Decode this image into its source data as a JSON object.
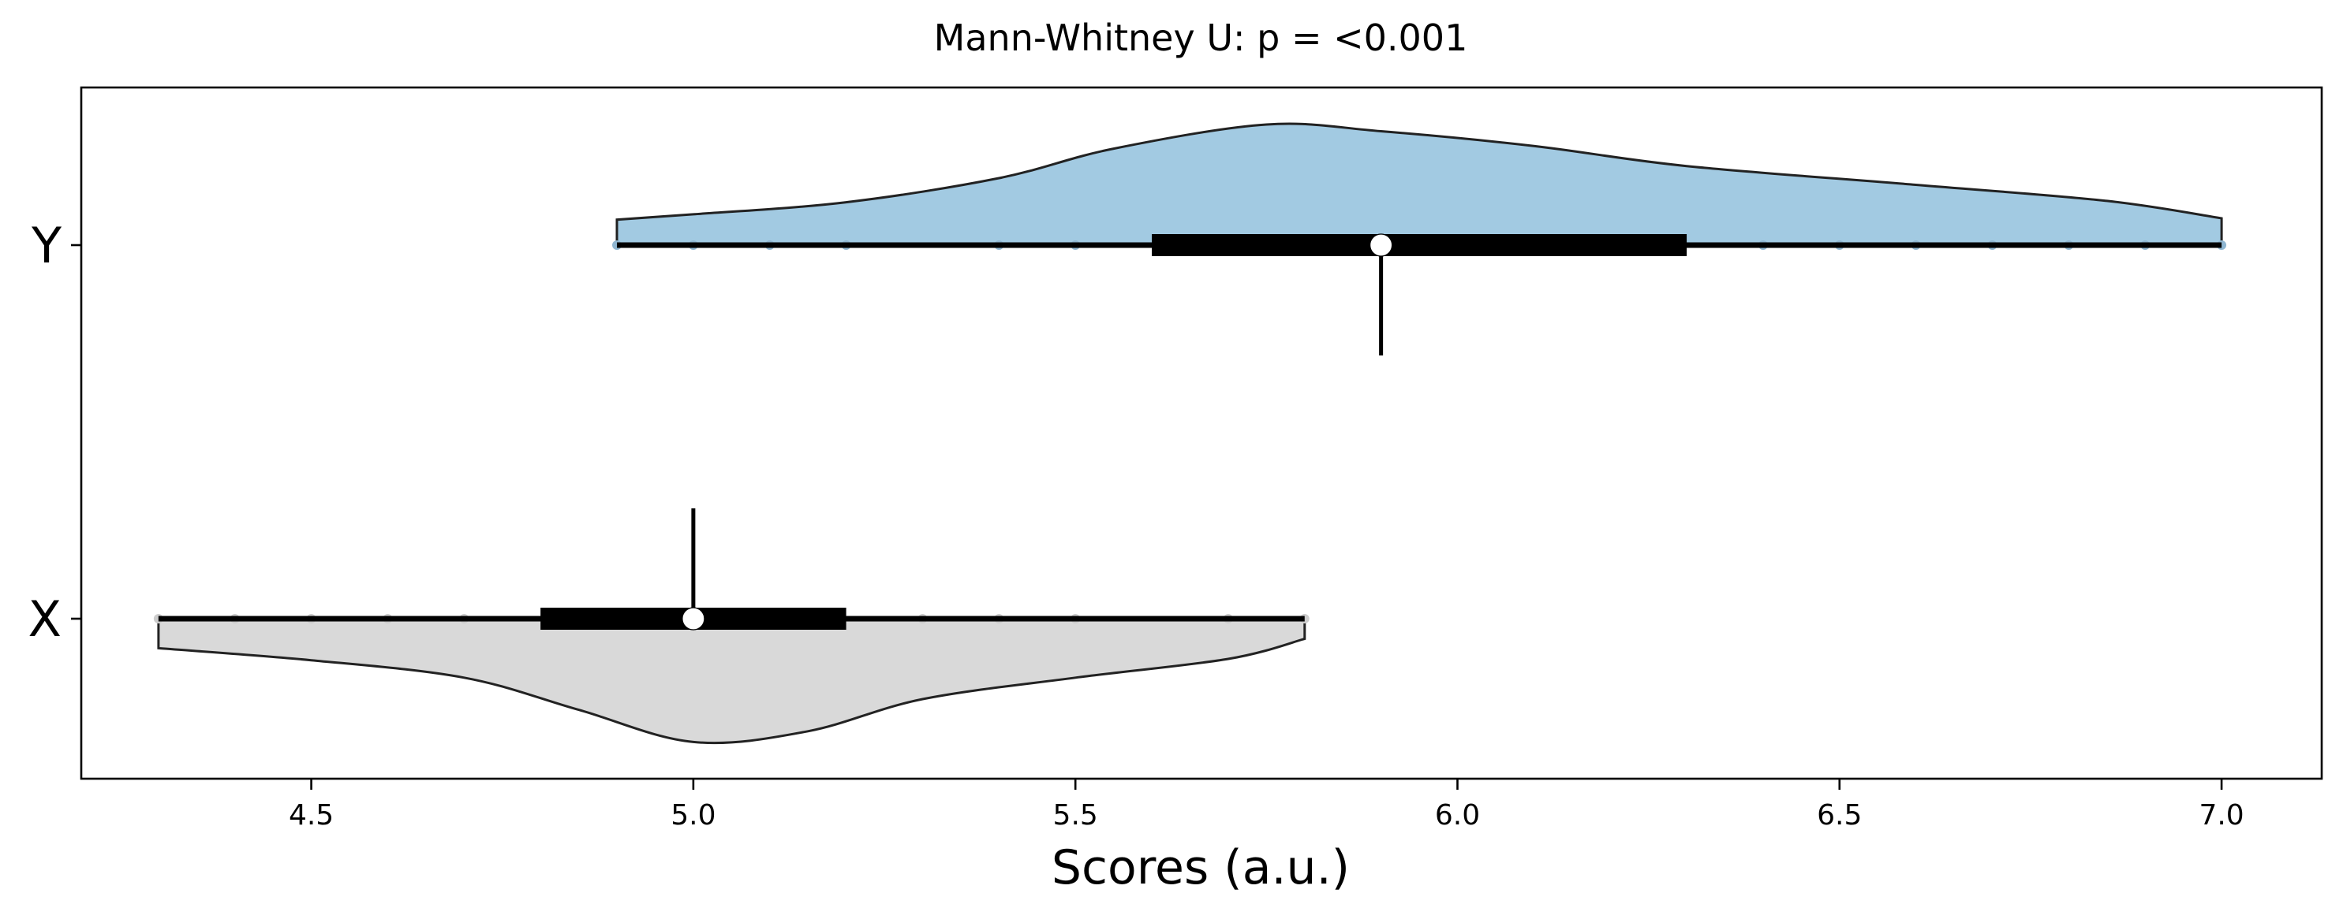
{
  "chart_data": {
    "type": "raincloud",
    "title": "Mann-Whitney U: p = <0.001",
    "xlabel": "Scores (a.u.)",
    "ylabel": "",
    "xlim": [
      4.2,
      7.13
    ],
    "xticks": [
      "4.5",
      "5.0",
      "5.5",
      "6.0",
      "6.5",
      "7.0"
    ],
    "xtick_values": [
      4.5,
      5.0,
      5.5,
      6.0,
      6.5,
      7.0
    ],
    "categories": [
      "Y",
      "X"
    ],
    "grid": false,
    "series": [
      {
        "name": "Y",
        "color": "#a2cae2",
        "point_color": "#8fb6d1",
        "violin_side": "above",
        "range": [
          4.9,
          7.0
        ],
        "median": 5.9,
        "q1": 5.6,
        "q3": 6.3,
        "points": [
          4.9,
          5.0,
          5.1,
          5.2,
          5.4,
          5.5,
          6.4,
          6.5,
          6.6,
          6.7,
          6.8,
          6.9,
          7.0
        ],
        "density": [
          [
            4.9,
            0.19
          ],
          [
            5.0,
            0.23
          ],
          [
            5.2,
            0.32
          ],
          [
            5.4,
            0.5
          ],
          [
            5.55,
            0.72
          ],
          [
            5.75,
            0.9
          ],
          [
            5.9,
            0.85
          ],
          [
            6.1,
            0.74
          ],
          [
            6.3,
            0.59
          ],
          [
            6.6,
            0.45
          ],
          [
            6.85,
            0.33
          ],
          [
            7.0,
            0.2
          ]
        ]
      },
      {
        "name": "X",
        "color": "#d9d9d9",
        "point_color": "#cccccc",
        "violin_side": "below",
        "range": [
          4.3,
          5.8
        ],
        "median": 5.0,
        "q1": 4.8,
        "q3": 5.2,
        "points": [
          4.3,
          4.4,
          4.5,
          4.6,
          4.7,
          5.3,
          5.4,
          5.5,
          5.7,
          5.8
        ],
        "density": [
          [
            4.3,
            0.22
          ],
          [
            4.5,
            0.31
          ],
          [
            4.7,
            0.44
          ],
          [
            4.85,
            0.68
          ],
          [
            5.0,
            0.92
          ],
          [
            5.15,
            0.84
          ],
          [
            5.3,
            0.6
          ],
          [
            5.5,
            0.44
          ],
          [
            5.7,
            0.3
          ],
          [
            5.8,
            0.15
          ]
        ]
      }
    ]
  }
}
